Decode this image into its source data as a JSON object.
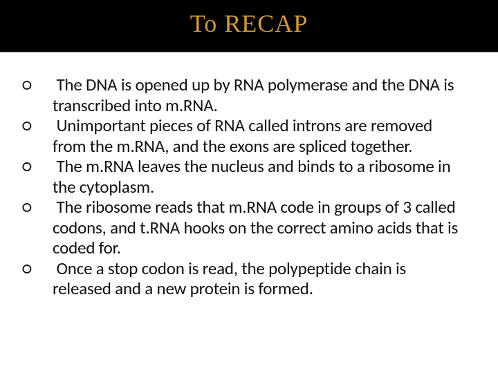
{
  "slide": {
    "title": "To RECAP",
    "title_color": "#d99a2b",
    "title_bg": "#000000",
    "title_fontsize": 36,
    "bullet_marker": "○",
    "bullets": [
      "The DNA is opened up by RNA polymerase and the DNA is transcribed into m.RNA.",
      "Unimportant pieces of RNA called introns are removed from the m.RNA, and the exons are spliced together.",
      "The m.RNA leaves the nucleus and binds to a ribosome in the cytoplasm.",
      "The ribosome reads that m.RNA code in groups of 3 called codons, and t.RNA hooks on the correct amino acids that is coded for.",
      "Once a stop codon is read, the polypeptide chain is released and a new protein is formed."
    ],
    "body_fontsize": 25,
    "body_color": "#111111",
    "background_color": "#ffffff"
  }
}
